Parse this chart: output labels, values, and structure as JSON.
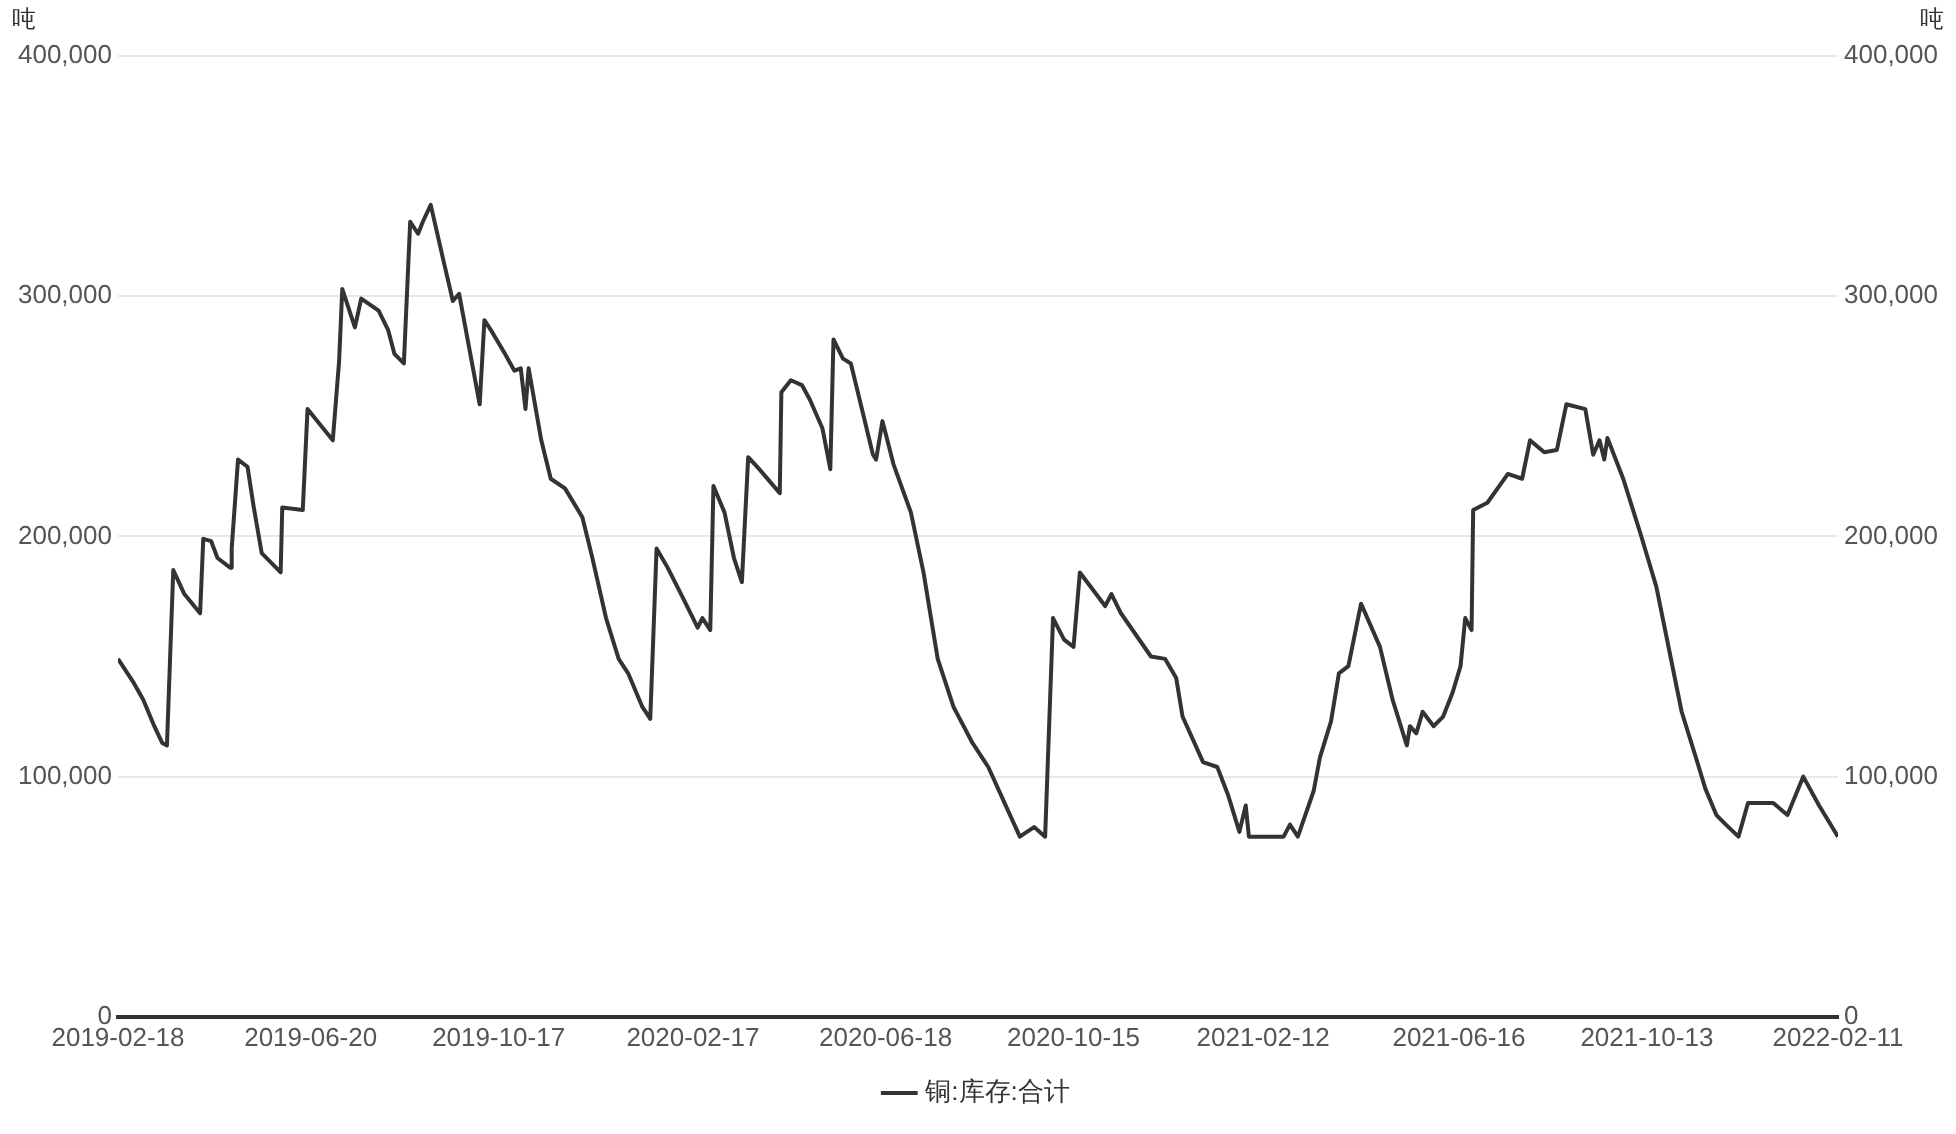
{
  "chart_data": {
    "type": "line",
    "ylabel": "吨",
    "y2label": "吨",
    "x": [
      "2019-02-18",
      "2019-02-28",
      "2019-03-06",
      "2019-03-13",
      "2019-03-18",
      "2019-03-21",
      "2019-03-25",
      "2019-04-01",
      "2019-04-11",
      "2019-04-13",
      "2019-04-18",
      "2019-04-22",
      "2019-04-30",
      "2019-05-01",
      "2019-05-05",
      "2019-05-11",
      "2019-05-15",
      "2019-05-20",
      "2019-06-01",
      "2019-06-02",
      "2019-06-15",
      "2019-06-18",
      "2019-07-04",
      "2019-07-08",
      "2019-07-10",
      "2019-07-18",
      "2019-07-22",
      "2019-08-02",
      "2019-08-08",
      "2019-08-12",
      "2019-08-18",
      "2019-08-22",
      "2019-08-27",
      "2019-08-30",
      "2019-09-04",
      "2019-09-12",
      "2019-09-18",
      "2019-09-22",
      "2019-10-05",
      "2019-10-08",
      "2019-10-12",
      "2019-10-21",
      "2019-10-27",
      "2019-10-31",
      "2019-11-03",
      "2019-11-05",
      "2019-11-13",
      "2019-11-19",
      "2019-11-28",
      "2019-12-09",
      "2019-12-15",
      "2019-12-24",
      "2020-01-01",
      "2020-01-07",
      "2020-01-16",
      "2020-01-21",
      "2020-01-25",
      "2020-02-01",
      "2020-02-11",
      "2020-02-20",
      "2020-02-23",
      "2020-02-28",
      "2020-03-01",
      "2020-03-08",
      "2020-03-14",
      "2020-03-19",
      "2020-03-23",
      "2020-03-30",
      "2020-04-12",
      "2020-04-13",
      "2020-04-19",
      "2020-04-26",
      "2020-05-01",
      "2020-05-09",
      "2020-05-14",
      "2020-05-16",
      "2020-05-22",
      "2020-05-27",
      "2020-06-03",
      "2020-06-10",
      "2020-06-12",
      "2020-06-16",
      "2020-06-23",
      "2020-07-04",
      "2020-07-12",
      "2020-07-21",
      "2020-07-31",
      "2020-08-12",
      "2020-08-22",
      "2020-09-02",
      "2020-09-11",
      "2020-09-20",
      "2020-09-27",
      "2020-10-02",
      "2020-10-09",
      "2020-10-15",
      "2020-10-19",
      "2020-11-04",
      "2020-11-08",
      "2020-11-14",
      "2020-12-03",
      "2020-12-12",
      "2020-12-19",
      "2020-12-23",
      "2021-01-05",
      "2021-01-14",
      "2021-01-21",
      "2021-01-28",
      "2021-02-01",
      "2021-02-03",
      "2021-02-25",
      "2021-03-01",
      "2021-03-06",
      "2021-03-16",
      "2021-03-20",
      "2021-03-27",
      "2021-04-01",
      "2021-04-07",
      "2021-04-15",
      "2021-04-27",
      "2021-05-05",
      "2021-05-14",
      "2021-05-16",
      "2021-05-20",
      "2021-05-24",
      "2021-05-31",
      "2021-06-06",
      "2021-06-12",
      "2021-06-17",
      "2021-06-20",
      "2021-06-24",
      "2021-06-25",
      "2021-07-04",
      "2021-07-17",
      "2021-07-26",
      "2021-07-31",
      "2021-08-09",
      "2021-08-17",
      "2021-08-23",
      "2021-09-04",
      "2021-09-09",
      "2021-09-13",
      "2021-09-16",
      "2021-09-18",
      "2021-09-28",
      "2021-10-09",
      "2021-10-19",
      "2021-11-04",
      "2021-11-13",
      "2021-11-19",
      "2021-11-26",
      "2021-12-02",
      "2021-12-10",
      "2021-12-16",
      "2022-01-01",
      "2022-01-10",
      "2022-01-20",
      "2022-01-30",
      "2022-02-11"
    ],
    "series": [
      {
        "name": "铜:库存:合计",
        "color": "#333333",
        "values": [
          149000,
          139000,
          132000,
          121000,
          114000,
          113000,
          186000,
          176000,
          168000,
          199000,
          198000,
          191000,
          187000,
          195000,
          232000,
          229000,
          212000,
          193000,
          185000,
          212000,
          211000,
          253000,
          240000,
          273000,
          303000,
          287000,
          299000,
          294000,
          286000,
          276000,
          272000,
          331000,
          326000,
          331000,
          338000,
          315000,
          298000,
          301000,
          255000,
          290000,
          286000,
          276000,
          269000,
          270000,
          253000,
          270000,
          240000,
          224000,
          220000,
          208000,
          192000,
          166000,
          149000,
          143000,
          129000,
          124000,
          195000,
          187000,
          174000,
          162000,
          166000,
          161000,
          221000,
          210000,
          191000,
          181000,
          233000,
          228000,
          218000,
          260000,
          265000,
          263000,
          257000,
          245000,
          228000,
          282000,
          274000,
          272000,
          253000,
          234000,
          232000,
          248000,
          230000,
          210000,
          185000,
          149000,
          129000,
          114000,
          104000,
          88000,
          75000,
          79000,
          75000,
          166000,
          157000,
          154000,
          185000,
          171000,
          176000,
          168000,
          150000,
          149000,
          141000,
          125000,
          106000,
          104000,
          92000,
          77000,
          88000,
          75000,
          75000,
          80000,
          75000,
          94000,
          108000,
          123000,
          143000,
          146000,
          172000,
          154000,
          132000,
          113000,
          121000,
          118000,
          127000,
          121000,
          125000,
          135000,
          146000,
          166000,
          161000,
          211000,
          214000,
          226000,
          224000,
          240000,
          235000,
          236000,
          255000,
          253000,
          234000,
          240000,
          232000,
          241000,
          224000,
          201000,
          179000,
          127000,
          108000,
          95000,
          84000,
          80000,
          75000,
          89000,
          89000,
          84000,
          100000,
          88000,
          75000
        ]
      }
    ],
    "xlim": [
      "2019-02-18",
      "2022-02-11"
    ],
    "xticks": [
      "2019-02-18",
      "2019-06-20",
      "2019-10-17",
      "2020-02-17",
      "2020-06-18",
      "2020-10-15",
      "2021-02-12",
      "2021-06-16",
      "2021-10-13",
      "2022-02-11"
    ],
    "ylim": [
      0,
      400000
    ],
    "yticks": [
      0,
      {
        "value": 100000,
        "label": "100,000"
      },
      {
        "value": 200000,
        "label": "200,000"
      },
      {
        "value": 300000,
        "label": "300,000"
      },
      {
        "value": 400000,
        "label": "400,000"
      }
    ],
    "y2lim": [
      0,
      400000
    ],
    "y2ticks": [
      0,
      {
        "value": 100000,
        "label": "100,000"
      },
      {
        "value": 200000,
        "label": "200,000"
      },
      {
        "value": 300000,
        "label": "300,000"
      },
      {
        "value": 400000,
        "label": "400,000"
      }
    ],
    "grid": "y",
    "legend": "bottom",
    "marker": "none",
    "line_style": "solid"
  }
}
